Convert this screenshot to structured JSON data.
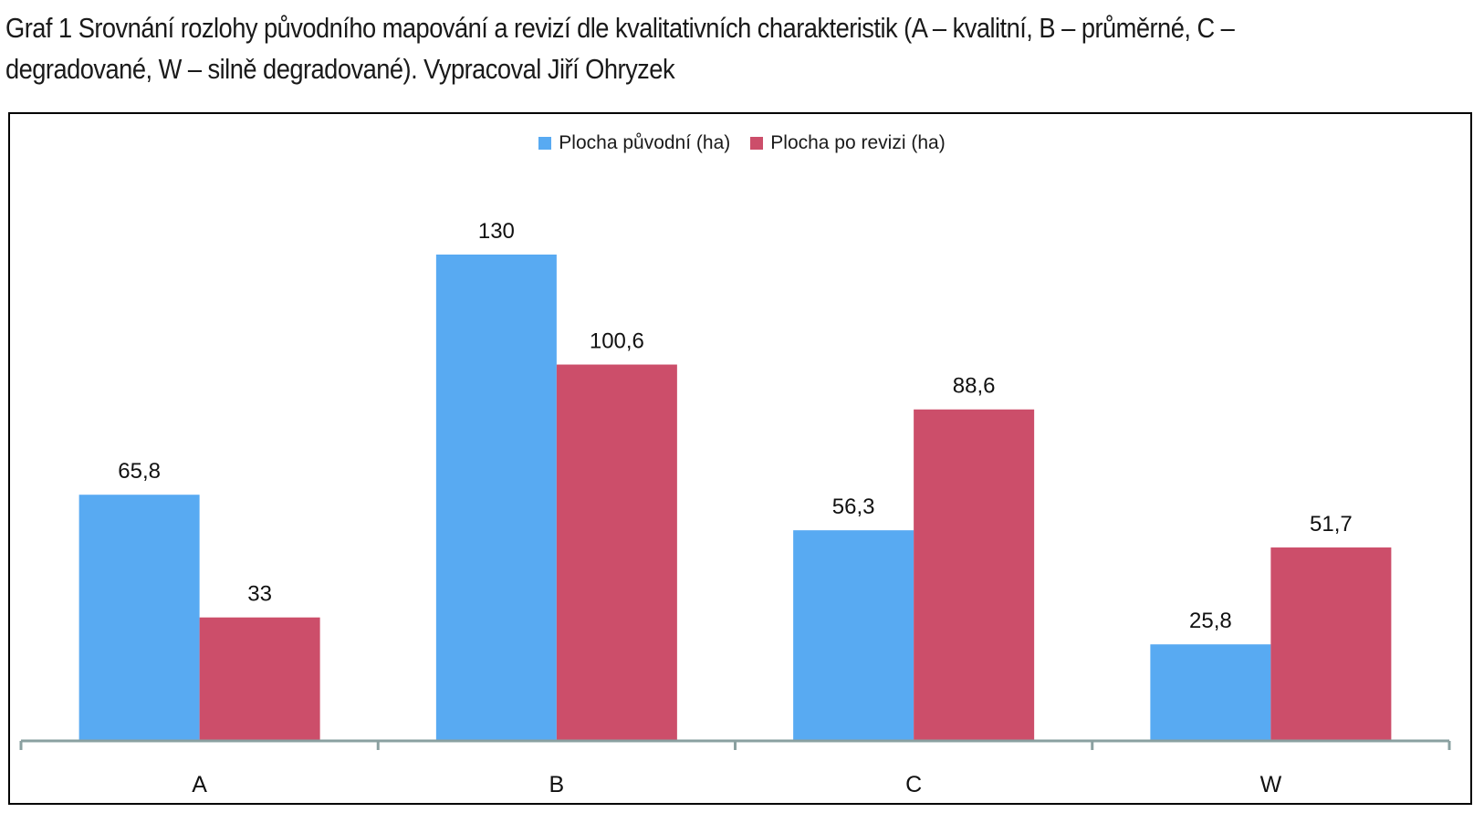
{
  "caption": {
    "line1": "Graf 1 Srovnání rozlohy původního mapování a revizí dle kvalitativních charakteristik (A – kvalitní, B – průměrné, C –",
    "line2": "degradované, W – silně degradované). Vypracoval Jiří Ohryzek"
  },
  "colors": {
    "series1": "#58aaf2",
    "series2": "#cc4e6a",
    "axis": "#8aa0a0"
  },
  "chart_data": {
    "type": "bar",
    "categories": [
      "A",
      "B",
      "C",
      "W"
    ],
    "series": [
      {
        "name": "Plocha původní (ha)",
        "values": [
          65.8,
          130,
          56.3,
          25.8
        ],
        "labels": [
          "65,8",
          "130",
          "56,3",
          "25,8"
        ]
      },
      {
        "name": "Plocha po revizi (ha)",
        "values": [
          33,
          100.6,
          88.6,
          51.7
        ],
        "labels": [
          "33",
          "100,6",
          "88,6",
          "51,7"
        ]
      }
    ],
    "ylim": [
      0,
      130
    ],
    "grid": false,
    "legend": "top-center"
  }
}
